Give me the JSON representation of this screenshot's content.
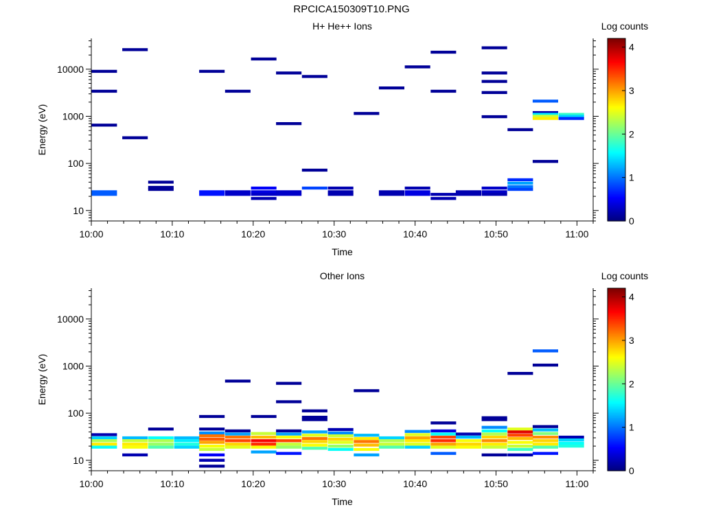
{
  "title": "RPCICA150309T10.PNG",
  "chart_data": [
    {
      "type": "heatmap",
      "title": "H+ He++ Ions",
      "xlabel": "Time",
      "ylabel": "Energy (eV)",
      "colorbar_label": "Log counts",
      "colorbar_ticks": [
        "0",
        "1",
        "2",
        "3",
        "4"
      ],
      "colorbar_range": [
        0,
        4.2
      ],
      "x_ticks": [
        "10:00",
        "10:10",
        "10:20",
        "10:30",
        "10:40",
        "10:50",
        "11:00"
      ],
      "x_range_min": [
        0,
        62
      ],
      "y_ticks": [
        "10",
        "100",
        "1000",
        "10000"
      ],
      "y_scale": "log",
      "y_range": [
        6,
        45000
      ],
      "grid": false,
      "bins": [
        {
          "t": 1.6,
          "e": 9000,
          "z": 0.1
        },
        {
          "t": 1.6,
          "e": 3400,
          "z": 0.1
        },
        {
          "t": 1.6,
          "e": 650,
          "z": 0.1
        },
        {
          "t": 1.6,
          "e": 25,
          "z": 0.9
        },
        {
          "t": 1.6,
          "e": 22,
          "z": 0.9
        },
        {
          "t": 5.4,
          "e": 26000,
          "z": 0.1
        },
        {
          "t": 5.4,
          "e": 350,
          "z": 0.1
        },
        {
          "t": 8.6,
          "e": 40,
          "z": 0.1
        },
        {
          "t": 8.6,
          "e": 31,
          "z": 0.1
        },
        {
          "t": 8.6,
          "e": 28,
          "z": 0.1
        },
        {
          "t": 14.9,
          "e": 9000,
          "z": 0.1
        },
        {
          "t": 14.9,
          "e": 25,
          "z": 0.6
        },
        {
          "t": 14.9,
          "e": 22,
          "z": 0.6
        },
        {
          "t": 18.1,
          "e": 3400,
          "z": 0.1
        },
        {
          "t": 18.1,
          "e": 25,
          "z": 0.3
        },
        {
          "t": 18.1,
          "e": 22,
          "z": 0.3
        },
        {
          "t": 21.3,
          "e": 16500,
          "z": 0.1
        },
        {
          "t": 21.3,
          "e": 30,
          "z": 0.5
        },
        {
          "t": 21.3,
          "e": 25,
          "z": 0.4
        },
        {
          "t": 21.3,
          "e": 22,
          "z": 0.3
        },
        {
          "t": 21.3,
          "e": 18,
          "z": 0.2
        },
        {
          "t": 24.4,
          "e": 8300,
          "z": 0.1
        },
        {
          "t": 24.4,
          "e": 700,
          "z": 0.1
        },
        {
          "t": 24.4,
          "e": 25,
          "z": 0.3
        },
        {
          "t": 24.4,
          "e": 22,
          "z": 0.3
        },
        {
          "t": 27.6,
          "e": 7000,
          "z": 0.1
        },
        {
          "t": 27.6,
          "e": 72,
          "z": 0.1
        },
        {
          "t": 27.6,
          "e": 30,
          "z": 0.8
        },
        {
          "t": 30.8,
          "e": 30,
          "z": 0.2
        },
        {
          "t": 30.8,
          "e": 25,
          "z": 0.2
        },
        {
          "t": 30.8,
          "e": 22,
          "z": 0.2
        },
        {
          "t": 34.0,
          "e": 1150,
          "z": 0.1
        },
        {
          "t": 37.1,
          "e": 4000,
          "z": 0.1
        },
        {
          "t": 37.1,
          "e": 25,
          "z": 0.2
        },
        {
          "t": 37.1,
          "e": 22,
          "z": 0.2
        },
        {
          "t": 40.3,
          "e": 11200,
          "z": 0.1
        },
        {
          "t": 40.3,
          "e": 30,
          "z": 0.2
        },
        {
          "t": 40.3,
          "e": 25,
          "z": 0.4
        },
        {
          "t": 40.3,
          "e": 22,
          "z": 0.4
        },
        {
          "t": 43.5,
          "e": 23000,
          "z": 0.1
        },
        {
          "t": 43.5,
          "e": 3400,
          "z": 0.1
        },
        {
          "t": 43.5,
          "e": 22,
          "z": 0.2
        },
        {
          "t": 43.5,
          "e": 18,
          "z": 0.2
        },
        {
          "t": 46.6,
          "e": 25,
          "z": 0.2
        },
        {
          "t": 46.6,
          "e": 22,
          "z": 0.2
        },
        {
          "t": 49.8,
          "e": 28500,
          "z": 0.1
        },
        {
          "t": 49.8,
          "e": 8300,
          "z": 0.1
        },
        {
          "t": 49.8,
          "e": 5500,
          "z": 0.1
        },
        {
          "t": 49.8,
          "e": 3200,
          "z": 0.1
        },
        {
          "t": 49.8,
          "e": 980,
          "z": 0.1
        },
        {
          "t": 49.8,
          "e": 30,
          "z": 0.3
        },
        {
          "t": 49.8,
          "e": 25,
          "z": 0.3
        },
        {
          "t": 49.8,
          "e": 22,
          "z": 0.2
        },
        {
          "t": 53.0,
          "e": 520,
          "z": 0.1
        },
        {
          "t": 53.0,
          "e": 45,
          "z": 0.7
        },
        {
          "t": 53.0,
          "e": 38,
          "z": 1.2
        },
        {
          "t": 53.0,
          "e": 32,
          "z": 1.0
        },
        {
          "t": 53.0,
          "e": 28,
          "z": 0.8
        },
        {
          "t": 56.1,
          "e": 2100,
          "z": 0.9
        },
        {
          "t": 56.1,
          "e": 1200,
          "z": 0.2
        },
        {
          "t": 56.1,
          "e": 1100,
          "z": 1.5
        },
        {
          "t": 56.1,
          "e": 1000,
          "z": 2.4
        },
        {
          "t": 56.1,
          "e": 900,
          "z": 2.7
        },
        {
          "t": 56.1,
          "e": 110,
          "z": 0.1
        },
        {
          "t": 59.3,
          "e": 1100,
          "z": 1.8
        },
        {
          "t": 59.3,
          "e": 1000,
          "z": 1.4
        },
        {
          "t": 59.3,
          "e": 900,
          "z": 0.7
        }
      ]
    },
    {
      "type": "heatmap",
      "title": "Other Ions",
      "xlabel": "Time",
      "ylabel": "Energy (eV)",
      "colorbar_label": "Log counts",
      "colorbar_ticks": [
        "0",
        "1",
        "2",
        "3",
        "4"
      ],
      "colorbar_range": [
        0,
        4.2
      ],
      "x_ticks": [
        "10:00",
        "10:10",
        "10:20",
        "10:30",
        "10:40",
        "10:50",
        "11:00"
      ],
      "x_range_min": [
        0,
        62
      ],
      "y_ticks": [
        "10",
        "100",
        "1000",
        "10000"
      ],
      "y_scale": "log",
      "y_range": [
        6,
        45000
      ],
      "grid": false,
      "bins": [
        {
          "t": 1.6,
          "e": 35,
          "z": 0.2
        },
        {
          "t": 1.6,
          "e": 30,
          "z": 1.4
        },
        {
          "t": 1.6,
          "e": 26,
          "z": 2.3
        },
        {
          "t": 1.6,
          "e": 22,
          "z": 2.7
        },
        {
          "t": 1.6,
          "e": 19,
          "z": 1.6
        },
        {
          "t": 5.4,
          "e": 30,
          "z": 1.3
        },
        {
          "t": 5.4,
          "e": 26,
          "z": 2.4
        },
        {
          "t": 5.4,
          "e": 22,
          "z": 2.7
        },
        {
          "t": 5.4,
          "e": 19,
          "z": 2.6
        },
        {
          "t": 5.4,
          "e": 13,
          "z": 0.2
        },
        {
          "t": 8.6,
          "e": 46,
          "z": 0.1
        },
        {
          "t": 8.6,
          "e": 30,
          "z": 1.6
        },
        {
          "t": 8.6,
          "e": 26,
          "z": 2.3
        },
        {
          "t": 8.6,
          "e": 22,
          "z": 2.2
        },
        {
          "t": 8.6,
          "e": 19,
          "z": 1.9
        },
        {
          "t": 11.8,
          "e": 30,
          "z": 1.3
        },
        {
          "t": 11.8,
          "e": 26,
          "z": 1.5
        },
        {
          "t": 11.8,
          "e": 22,
          "z": 1.7
        },
        {
          "t": 11.8,
          "e": 19,
          "z": 1.4
        },
        {
          "t": 14.9,
          "e": 85,
          "z": 0.1
        },
        {
          "t": 14.9,
          "e": 46,
          "z": 0.1
        },
        {
          "t": 14.9,
          "e": 38,
          "z": 1.1
        },
        {
          "t": 14.9,
          "e": 33,
          "z": 3.2
        },
        {
          "t": 14.9,
          "e": 28,
          "z": 3.3
        },
        {
          "t": 14.9,
          "e": 24,
          "z": 3.0
        },
        {
          "t": 14.9,
          "e": 20,
          "z": 2.6
        },
        {
          "t": 14.9,
          "e": 17,
          "z": 2.4
        },
        {
          "t": 14.9,
          "e": 13,
          "z": 0.5
        },
        {
          "t": 14.9,
          "e": 10,
          "z": 0.2
        },
        {
          "t": 14.9,
          "e": 7.5,
          "z": 0.1
        },
        {
          "t": 18.1,
          "e": 480,
          "z": 0.1
        },
        {
          "t": 18.1,
          "e": 42,
          "z": 0.1
        },
        {
          "t": 18.1,
          "e": 36,
          "z": 1.2
        },
        {
          "t": 18.1,
          "e": 31,
          "z": 3.2
        },
        {
          "t": 18.1,
          "e": 26,
          "z": 3.4
        },
        {
          "t": 18.1,
          "e": 22,
          "z": 2.8
        },
        {
          "t": 18.1,
          "e": 19,
          "z": 2.5
        },
        {
          "t": 21.3,
          "e": 85,
          "z": 0.1
        },
        {
          "t": 21.3,
          "e": 37,
          "z": 2.4
        },
        {
          "t": 21.3,
          "e": 31,
          "z": 2.9
        },
        {
          "t": 21.3,
          "e": 26,
          "z": 3.7
        },
        {
          "t": 21.3,
          "e": 22,
          "z": 3.5
        },
        {
          "t": 21.3,
          "e": 19,
          "z": 2.6
        },
        {
          "t": 21.3,
          "e": 15,
          "z": 1.2
        },
        {
          "t": 24.4,
          "e": 430,
          "z": 0.1
        },
        {
          "t": 24.4,
          "e": 175,
          "z": 0.1
        },
        {
          "t": 24.4,
          "e": 42,
          "z": 0.1
        },
        {
          "t": 24.4,
          "e": 36,
          "z": 1.2
        },
        {
          "t": 24.4,
          "e": 31,
          "z": 2.6
        },
        {
          "t": 24.4,
          "e": 26,
          "z": 3.4
        },
        {
          "t": 24.4,
          "e": 22,
          "z": 2.4
        },
        {
          "t": 24.4,
          "e": 19,
          "z": 2.2
        },
        {
          "t": 24.4,
          "e": 14,
          "z": 0.6
        },
        {
          "t": 27.6,
          "e": 112,
          "z": 0.1
        },
        {
          "t": 27.6,
          "e": 82,
          "z": 0.1
        },
        {
          "t": 27.6,
          "e": 73,
          "z": 0.1
        },
        {
          "t": 27.6,
          "e": 40,
          "z": 1.2
        },
        {
          "t": 27.6,
          "e": 34,
          "z": 2.5
        },
        {
          "t": 27.6,
          "e": 29,
          "z": 3.2
        },
        {
          "t": 27.6,
          "e": 25,
          "z": 2.8
        },
        {
          "t": 27.6,
          "e": 21,
          "z": 2.6
        },
        {
          "t": 27.6,
          "e": 18,
          "z": 1.9
        },
        {
          "t": 30.8,
          "e": 45,
          "z": 0.2
        },
        {
          "t": 30.8,
          "e": 38,
          "z": 1.1
        },
        {
          "t": 30.8,
          "e": 33,
          "z": 2.4
        },
        {
          "t": 30.8,
          "e": 28,
          "z": 2.8
        },
        {
          "t": 30.8,
          "e": 24,
          "z": 2.5
        },
        {
          "t": 30.8,
          "e": 20,
          "z": 2.2
        },
        {
          "t": 30.8,
          "e": 17,
          "z": 1.6
        },
        {
          "t": 34.0,
          "e": 300,
          "z": 0.1
        },
        {
          "t": 34.0,
          "e": 34,
          "z": 1.3
        },
        {
          "t": 34.0,
          "e": 29,
          "z": 2.7
        },
        {
          "t": 34.0,
          "e": 25,
          "z": 3.2
        },
        {
          "t": 34.0,
          "e": 21,
          "z": 2.9
        },
        {
          "t": 34.0,
          "e": 17,
          "z": 2.6
        },
        {
          "t": 34.0,
          "e": 13,
          "z": 1.2
        },
        {
          "t": 37.1,
          "e": 30,
          "z": 1.4
        },
        {
          "t": 37.1,
          "e": 26,
          "z": 2.3
        },
        {
          "t": 37.1,
          "e": 22,
          "z": 2.4
        },
        {
          "t": 37.1,
          "e": 19,
          "z": 1.9
        },
        {
          "t": 40.3,
          "e": 41,
          "z": 1.1
        },
        {
          "t": 40.3,
          "e": 35,
          "z": 2.5
        },
        {
          "t": 40.3,
          "e": 30,
          "z": 3.0
        },
        {
          "t": 40.3,
          "e": 26,
          "z": 2.7
        },
        {
          "t": 40.3,
          "e": 22,
          "z": 2.5
        },
        {
          "t": 40.3,
          "e": 19,
          "z": 1.4
        },
        {
          "t": 43.5,
          "e": 62,
          "z": 0.1
        },
        {
          "t": 43.5,
          "e": 42,
          "z": 0.4
        },
        {
          "t": 43.5,
          "e": 36,
          "z": 1.6
        },
        {
          "t": 43.5,
          "e": 31,
          "z": 3.4
        },
        {
          "t": 43.5,
          "e": 26,
          "z": 3.5
        },
        {
          "t": 43.5,
          "e": 22,
          "z": 3.0
        },
        {
          "t": 43.5,
          "e": 19,
          "z": 2.5
        },
        {
          "t": 43.5,
          "e": 14,
          "z": 0.9
        },
        {
          "t": 46.6,
          "e": 36,
          "z": 0.2
        },
        {
          "t": 46.6,
          "e": 31,
          "z": 1.3
        },
        {
          "t": 46.6,
          "e": 26,
          "z": 2.6
        },
        {
          "t": 46.6,
          "e": 22,
          "z": 2.8
        },
        {
          "t": 46.6,
          "e": 19,
          "z": 2.6
        },
        {
          "t": 49.8,
          "e": 80,
          "z": 0.1
        },
        {
          "t": 49.8,
          "e": 73,
          "z": 0.1
        },
        {
          "t": 49.8,
          "e": 50,
          "z": 1.1
        },
        {
          "t": 49.8,
          "e": 42,
          "z": 1.6
        },
        {
          "t": 49.8,
          "e": 36,
          "z": 2.3
        },
        {
          "t": 49.8,
          "e": 31,
          "z": 2.8
        },
        {
          "t": 49.8,
          "e": 26,
          "z": 3.1
        },
        {
          "t": 49.8,
          "e": 22,
          "z": 2.7
        },
        {
          "t": 49.8,
          "e": 19,
          "z": 2.4
        },
        {
          "t": 49.8,
          "e": 13,
          "z": 0.1
        },
        {
          "t": 53.0,
          "e": 700,
          "z": 0.1
        },
        {
          "t": 53.0,
          "e": 46,
          "z": 2.5
        },
        {
          "t": 53.0,
          "e": 40,
          "z": 3.8
        },
        {
          "t": 53.0,
          "e": 34,
          "z": 3.4
        },
        {
          "t": 53.0,
          "e": 29,
          "z": 2.9
        },
        {
          "t": 53.0,
          "e": 24,
          "z": 2.6
        },
        {
          "t": 53.0,
          "e": 20,
          "z": 2.4
        },
        {
          "t": 53.0,
          "e": 17,
          "z": 1.8
        },
        {
          "t": 53.0,
          "e": 13,
          "z": 0.2
        },
        {
          "t": 56.1,
          "e": 2100,
          "z": 0.9
        },
        {
          "t": 56.1,
          "e": 1050,
          "z": 0.1
        },
        {
          "t": 56.1,
          "e": 52,
          "z": 0.1
        },
        {
          "t": 56.1,
          "e": 44,
          "z": 1.3
        },
        {
          "t": 56.1,
          "e": 37,
          "z": 2.1
        },
        {
          "t": 56.1,
          "e": 31,
          "z": 3.1
        },
        {
          "t": 56.1,
          "e": 26,
          "z": 2.8
        },
        {
          "t": 56.1,
          "e": 22,
          "z": 2.7
        },
        {
          "t": 56.1,
          "e": 19,
          "z": 1.9
        },
        {
          "t": 56.1,
          "e": 14,
          "z": 0.6
        },
        {
          "t": 59.3,
          "e": 31,
          "z": 0.2
        },
        {
          "t": 59.3,
          "e": 27,
          "z": 1.4
        },
        {
          "t": 59.3,
          "e": 23,
          "z": 1.6
        },
        {
          "t": 59.3,
          "e": 20,
          "z": 1.7
        }
      ]
    }
  ]
}
